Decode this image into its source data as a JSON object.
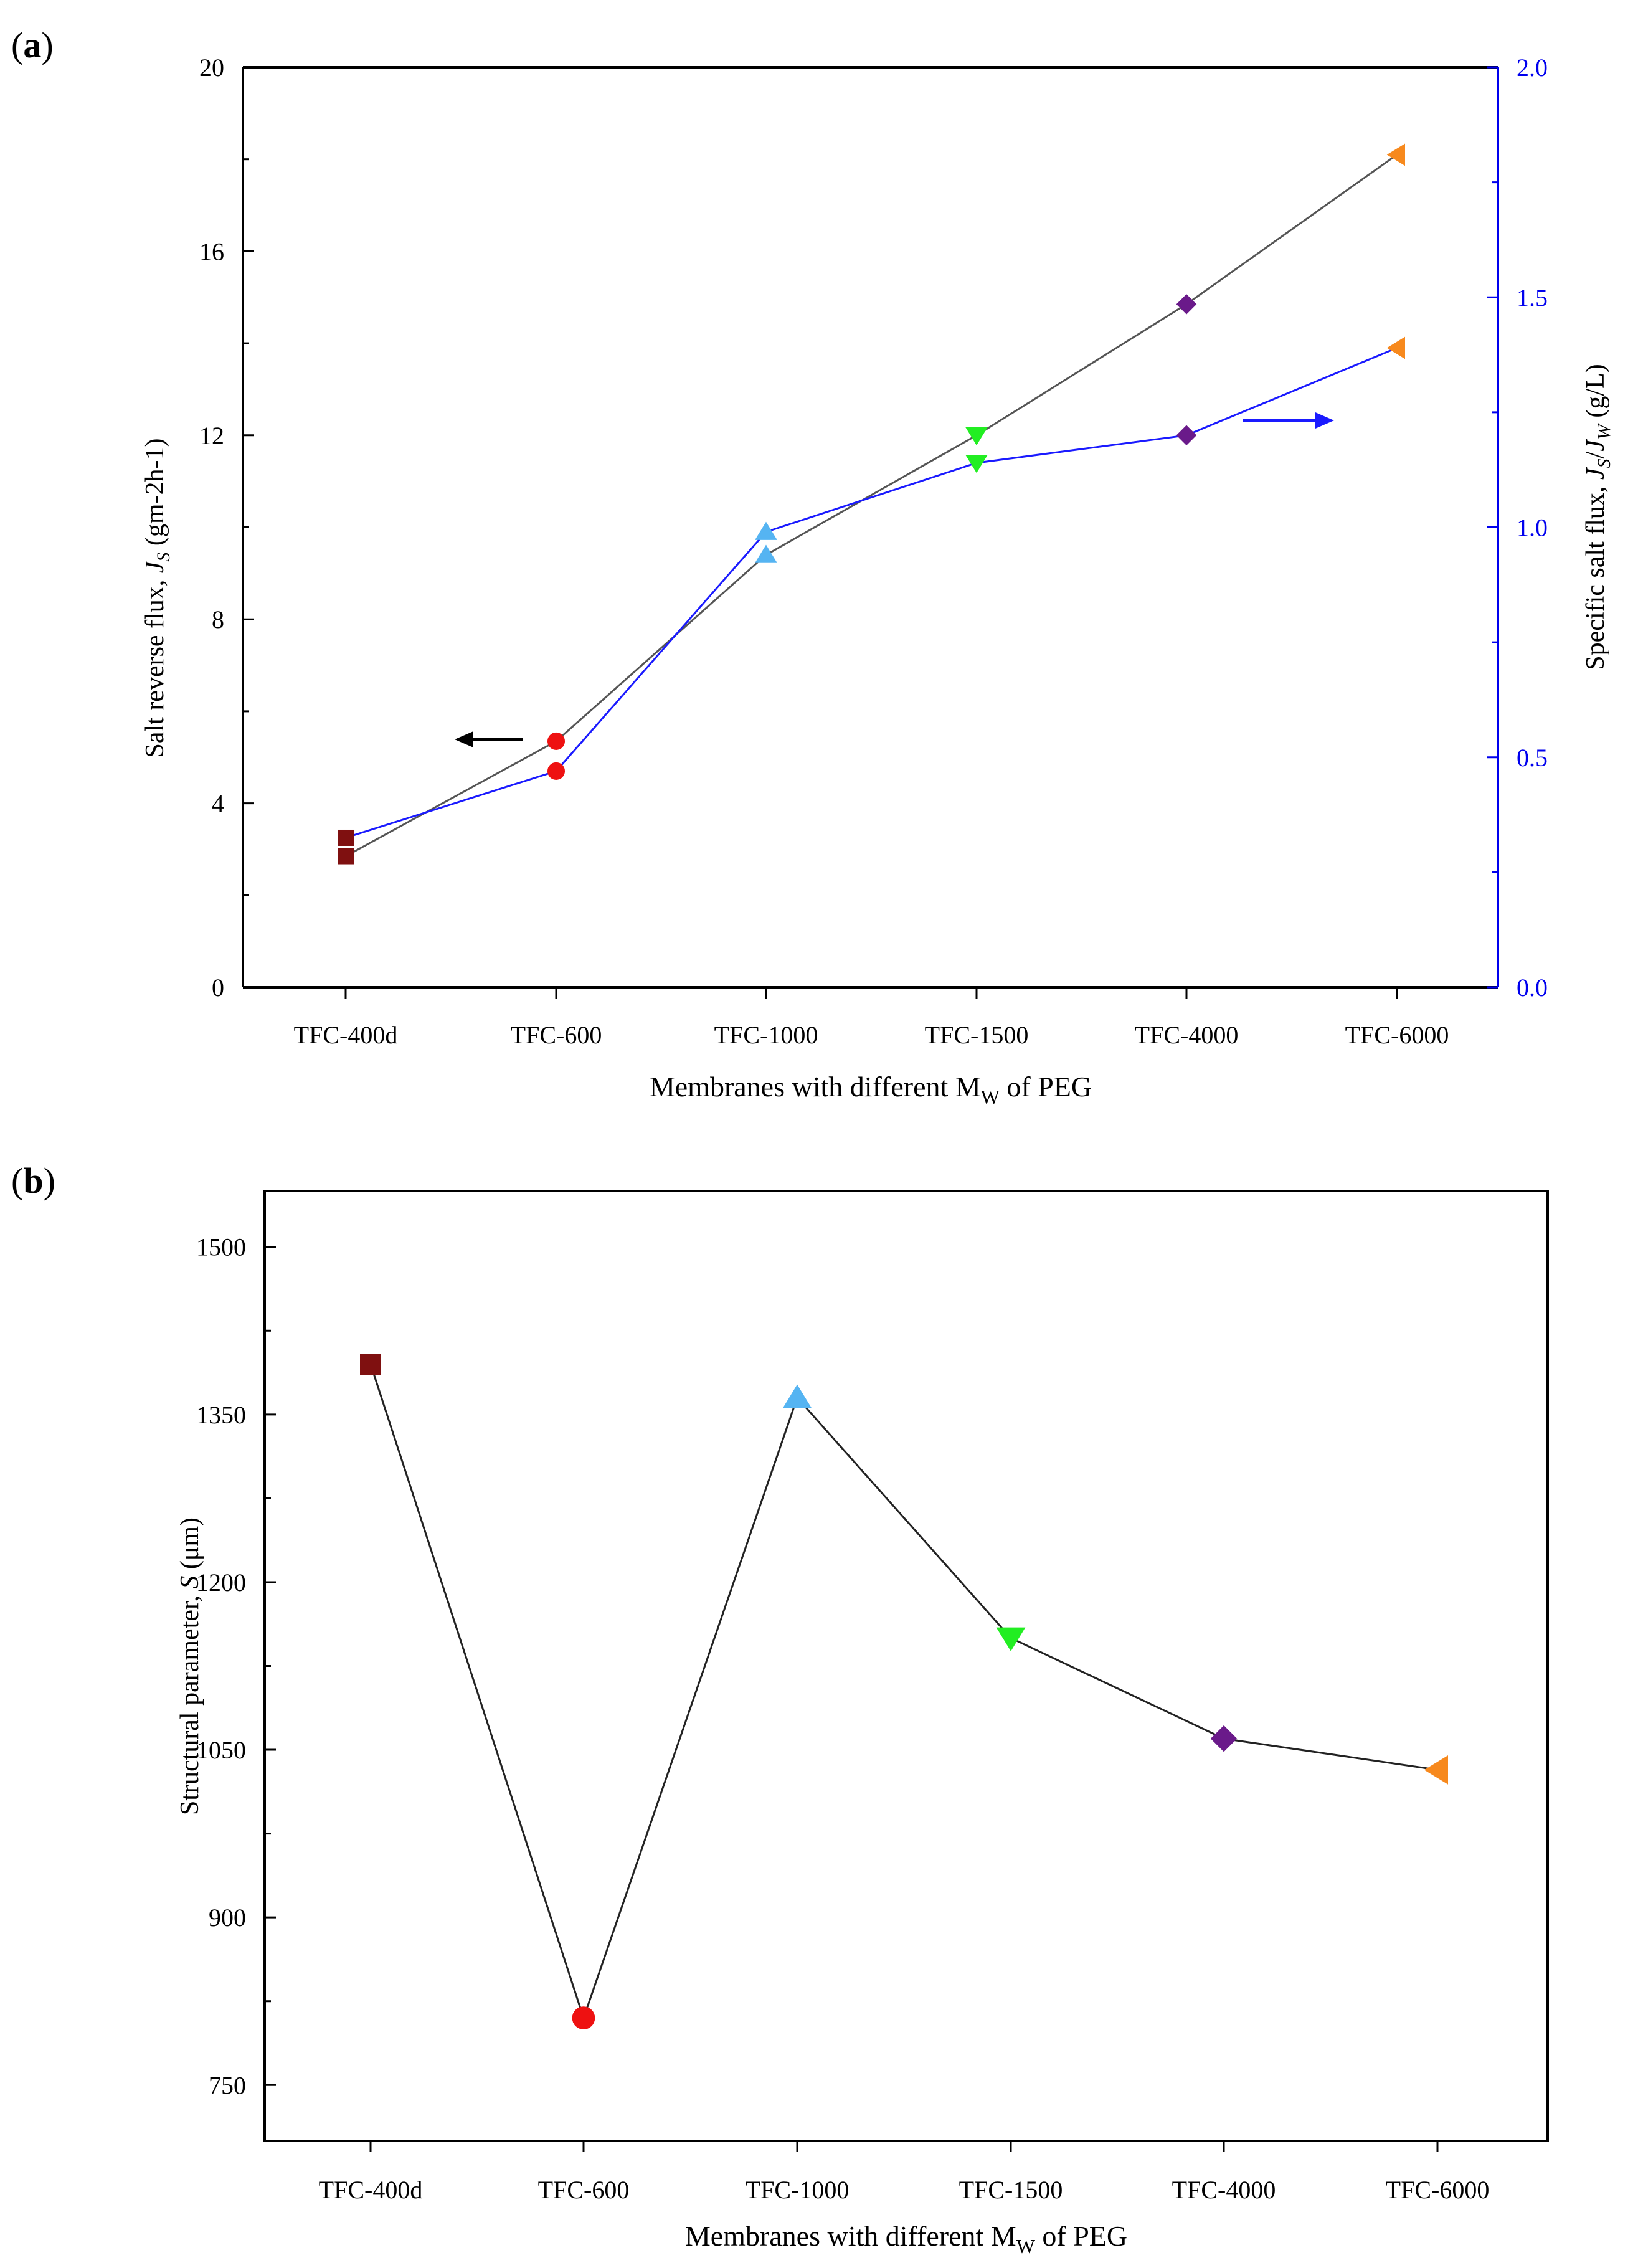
{
  "panels": {
    "a": "(a)",
    "b": "(b)",
    "a_bold": "a",
    "b_bold": "b"
  },
  "colors": {
    "TFC-400d": "#7f1010",
    "TFC-600": "#ee1111",
    "TFC-1000": "#55b4f2",
    "TFC-1500": "#22ee22",
    "TFC-4000": "#6a1a8a",
    "TFC-6000": "#f7891d",
    "black_line": "#555555",
    "blue_line": "#1a1aff",
    "right_axis": "#0000ee"
  },
  "chart_data": [
    {
      "type": "line",
      "panel": "a",
      "categories": [
        "TFC-400d",
        "TFC-600",
        "TFC-1000",
        "TFC-1500",
        "TFC-4000",
        "TFC-6000"
      ],
      "markers": [
        "square",
        "circle",
        "triangle-up",
        "triangle-down",
        "diamond",
        "triangle-left"
      ],
      "xlabel_pre": "Membranes with different M",
      "xlabel_sub": "W",
      "xlabel_post": " of PEG",
      "left_axis": {
        "label_pre": "Salt reverse flux, ",
        "label_italic": "J",
        "label_sub": "S",
        "label_post": " (gm-2h-1)",
        "ylim": [
          0,
          20
        ],
        "ticks": [
          0,
          4,
          8,
          12,
          16,
          20
        ]
      },
      "right_axis": {
        "label_pre": "Specific salt flux, ",
        "label_J1": "J",
        "label_S": "S",
        "label_slash": "/",
        "label_J2": "J",
        "label_W": "W",
        "label_post": " (g/L)",
        "ylim": [
          0.0,
          2.0
        ],
        "ticks": [
          "0.0",
          "0.5",
          "1.0",
          "1.5",
          "2.0"
        ]
      },
      "series": [
        {
          "name": "Salt reverse flux",
          "axis": "left",
          "values": [
            2.85,
            5.35,
            9.4,
            12.0,
            14.85,
            18.1
          ]
        },
        {
          "name": "Specific salt flux",
          "axis": "right",
          "values": [
            0.325,
            0.47,
            0.99,
            1.14,
            1.2,
            1.39
          ]
        }
      ]
    },
    {
      "type": "line",
      "panel": "b",
      "categories": [
        "TFC-400d",
        "TFC-600",
        "TFC-1000",
        "TFC-1500",
        "TFC-4000",
        "TFC-6000"
      ],
      "markers": [
        "square",
        "circle",
        "triangle-up",
        "triangle-down",
        "diamond",
        "triangle-left"
      ],
      "xlabel_pre": "Membranes with different M",
      "xlabel_sub": "W",
      "xlabel_post": " of PEG",
      "ylabel_pre": "Structural parameter, ",
      "ylabel_italic": "S",
      "ylabel_post": " (μm)",
      "ylim": [
        700,
        1550
      ],
      "ticks": [
        750,
        900,
        1050,
        1200,
        1350,
        1500
      ],
      "series": [
        {
          "name": "Structural parameter",
          "values": [
            1395,
            810,
            1365,
            1150,
            1060,
            1032
          ]
        }
      ]
    }
  ]
}
